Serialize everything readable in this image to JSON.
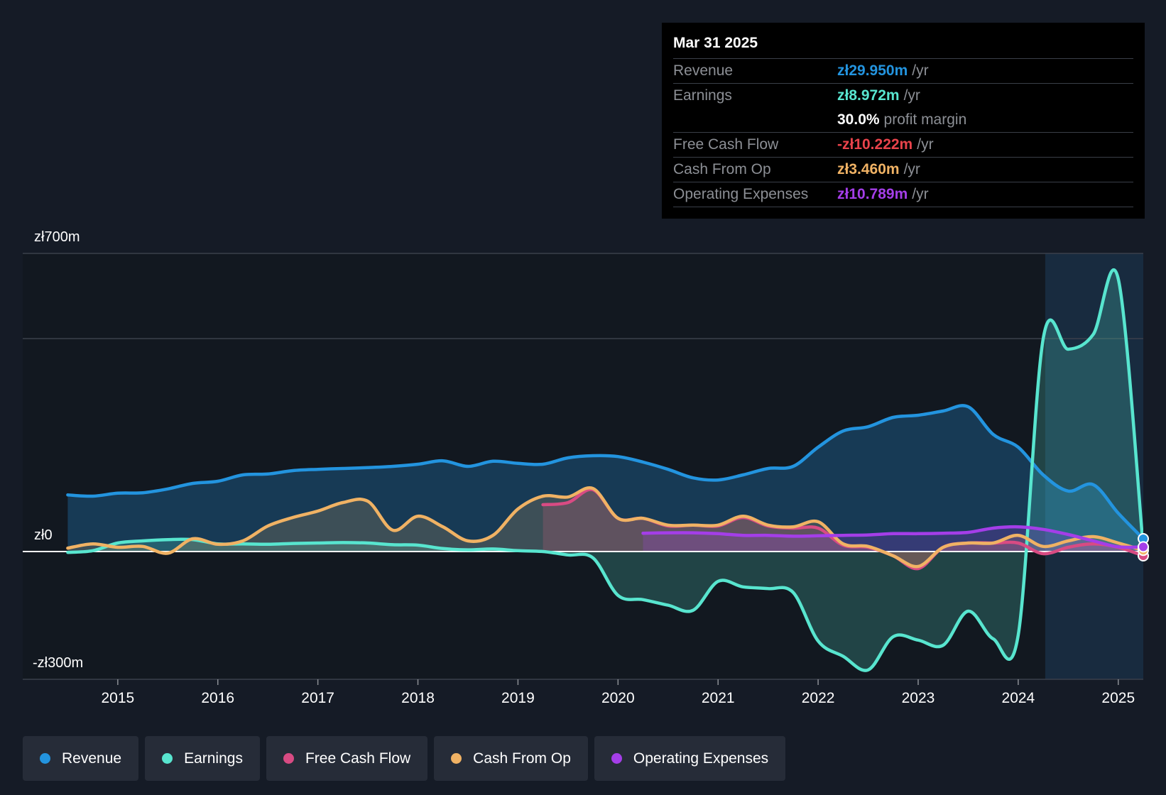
{
  "chart_data": {
    "type": "area",
    "y_axis": {
      "top_label": "zł700m",
      "zero_label": "zł0",
      "bottom_label": "-zł300m",
      "ylim": [
        -300,
        700
      ]
    },
    "x_ticks": [
      "2015",
      "2016",
      "2017",
      "2018",
      "2019",
      "2020",
      "2021",
      "2022",
      "2023",
      "2024",
      "2025"
    ],
    "xlim": [
      2014.05,
      2025.25
    ],
    "highlight_from": 2024.27,
    "series": [
      {
        "name": "Revenue",
        "color": "#2394df",
        "points": [
          [
            2014.5,
            133
          ],
          [
            2014.75,
            130
          ],
          [
            2015.0,
            137
          ],
          [
            2015.25,
            138
          ],
          [
            2015.5,
            147
          ],
          [
            2015.75,
            160
          ],
          [
            2016.0,
            165
          ],
          [
            2016.25,
            180
          ],
          [
            2016.5,
            182
          ],
          [
            2016.75,
            190
          ],
          [
            2017.0,
            193
          ],
          [
            2017.25,
            195
          ],
          [
            2017.5,
            197
          ],
          [
            2017.75,
            200
          ],
          [
            2018.0,
            205
          ],
          [
            2018.25,
            213
          ],
          [
            2018.5,
            200
          ],
          [
            2018.75,
            212
          ],
          [
            2019.0,
            207
          ],
          [
            2019.25,
            205
          ],
          [
            2019.5,
            220
          ],
          [
            2019.75,
            225
          ],
          [
            2020.0,
            223
          ],
          [
            2020.25,
            210
          ],
          [
            2020.5,
            193
          ],
          [
            2020.75,
            173
          ],
          [
            2021.0,
            168
          ],
          [
            2021.25,
            180
          ],
          [
            2021.5,
            195
          ],
          [
            2021.75,
            200
          ],
          [
            2022.0,
            245
          ],
          [
            2022.25,
            283
          ],
          [
            2022.5,
            293
          ],
          [
            2022.75,
            315
          ],
          [
            2023.0,
            320
          ],
          [
            2023.25,
            330
          ],
          [
            2023.5,
            340
          ],
          [
            2023.75,
            275
          ],
          [
            2024.0,
            245
          ],
          [
            2024.25,
            180
          ],
          [
            2024.5,
            142
          ],
          [
            2024.75,
            157
          ],
          [
            2025.0,
            90
          ],
          [
            2025.25,
            30
          ]
        ]
      },
      {
        "name": "Earnings",
        "color": "#58e5cf",
        "points": [
          [
            2014.5,
            -2
          ],
          [
            2014.75,
            2
          ],
          [
            2015.0,
            20
          ],
          [
            2015.25,
            25
          ],
          [
            2015.5,
            28
          ],
          [
            2015.75,
            28
          ],
          [
            2016.0,
            18
          ],
          [
            2016.25,
            18
          ],
          [
            2016.5,
            17
          ],
          [
            2016.75,
            19
          ],
          [
            2017.0,
            20
          ],
          [
            2017.25,
            21
          ],
          [
            2017.5,
            20
          ],
          [
            2017.75,
            16
          ],
          [
            2018.0,
            15
          ],
          [
            2018.25,
            7
          ],
          [
            2018.5,
            4
          ],
          [
            2018.75,
            6
          ],
          [
            2019.0,
            2
          ],
          [
            2019.25,
            0
          ],
          [
            2019.5,
            -8
          ],
          [
            2019.75,
            -15
          ],
          [
            2020.0,
            -103
          ],
          [
            2020.25,
            -113
          ],
          [
            2020.5,
            -126
          ],
          [
            2020.75,
            -138
          ],
          [
            2021.0,
            -70
          ],
          [
            2021.25,
            -83
          ],
          [
            2021.5,
            -87
          ],
          [
            2021.75,
            -96
          ],
          [
            2022.0,
            -210
          ],
          [
            2022.25,
            -246
          ],
          [
            2022.5,
            -278
          ],
          [
            2022.75,
            -200
          ],
          [
            2023.0,
            -208
          ],
          [
            2023.25,
            -220
          ],
          [
            2023.5,
            -140
          ],
          [
            2023.75,
            -205
          ],
          [
            2024.0,
            -196
          ],
          [
            2024.25,
            500
          ],
          [
            2024.5,
            475
          ],
          [
            2024.75,
            510
          ],
          [
            2025.0,
            640
          ],
          [
            2025.25,
            9
          ]
        ]
      },
      {
        "name": "Free Cash Flow",
        "color": "#d84b83",
        "points": [
          [
            2019.25,
            110
          ],
          [
            2019.5,
            115
          ],
          [
            2019.75,
            145
          ],
          [
            2020.0,
            78
          ],
          [
            2020.25,
            78
          ],
          [
            2020.5,
            60
          ],
          [
            2020.75,
            62
          ],
          [
            2021.0,
            60
          ],
          [
            2021.25,
            80
          ],
          [
            2021.5,
            60
          ],
          [
            2021.75,
            55
          ],
          [
            2022.0,
            55
          ],
          [
            2022.25,
            15
          ],
          [
            2022.5,
            10
          ],
          [
            2022.75,
            -10
          ],
          [
            2023.0,
            -40
          ],
          [
            2023.25,
            10
          ],
          [
            2023.5,
            20
          ],
          [
            2023.75,
            20
          ],
          [
            2024.0,
            20
          ],
          [
            2024.25,
            -5
          ],
          [
            2024.5,
            10
          ],
          [
            2024.75,
            18
          ],
          [
            2025.0,
            10
          ],
          [
            2025.25,
            -10
          ]
        ]
      },
      {
        "name": "Cash From Op",
        "color": "#f0b264",
        "points": [
          [
            2014.5,
            8
          ],
          [
            2014.75,
            18
          ],
          [
            2015.0,
            10
          ],
          [
            2015.25,
            12
          ],
          [
            2015.5,
            -4
          ],
          [
            2015.75,
            30
          ],
          [
            2016.0,
            17
          ],
          [
            2016.25,
            25
          ],
          [
            2016.5,
            60
          ],
          [
            2016.75,
            80
          ],
          [
            2017.0,
            95
          ],
          [
            2017.25,
            115
          ],
          [
            2017.5,
            118
          ],
          [
            2017.75,
            50
          ],
          [
            2018.0,
            83
          ],
          [
            2018.25,
            58
          ],
          [
            2018.5,
            25
          ],
          [
            2018.75,
            38
          ],
          [
            2019.0,
            100
          ],
          [
            2019.25,
            130
          ],
          [
            2019.5,
            128
          ],
          [
            2019.75,
            148
          ],
          [
            2020.0,
            78
          ],
          [
            2020.25,
            78
          ],
          [
            2020.5,
            62
          ],
          [
            2020.75,
            62
          ],
          [
            2021.0,
            62
          ],
          [
            2021.25,
            83
          ],
          [
            2021.5,
            62
          ],
          [
            2021.75,
            58
          ],
          [
            2022.0,
            70
          ],
          [
            2022.25,
            18
          ],
          [
            2022.5,
            12
          ],
          [
            2022.75,
            -10
          ],
          [
            2023.0,
            -35
          ],
          [
            2023.25,
            10
          ],
          [
            2023.5,
            20
          ],
          [
            2023.75,
            20
          ],
          [
            2024.0,
            38
          ],
          [
            2024.25,
            12
          ],
          [
            2024.5,
            25
          ],
          [
            2024.75,
            35
          ],
          [
            2025.0,
            20
          ],
          [
            2025.25,
            3
          ]
        ]
      },
      {
        "name": "Operating Expenses",
        "color": "#a43ee8",
        "points": [
          [
            2020.25,
            43
          ],
          [
            2020.5,
            44
          ],
          [
            2020.75,
            44
          ],
          [
            2021.0,
            42
          ],
          [
            2021.25,
            38
          ],
          [
            2021.5,
            38
          ],
          [
            2021.75,
            36
          ],
          [
            2022.0,
            37
          ],
          [
            2022.25,
            38
          ],
          [
            2022.5,
            39
          ],
          [
            2022.75,
            42
          ],
          [
            2023.0,
            42
          ],
          [
            2023.25,
            43
          ],
          [
            2023.5,
            45
          ],
          [
            2023.75,
            55
          ],
          [
            2024.0,
            58
          ],
          [
            2024.25,
            52
          ],
          [
            2024.5,
            40
          ],
          [
            2024.75,
            25
          ],
          [
            2025.0,
            11
          ],
          [
            2025.25,
            11
          ]
        ]
      }
    ]
  },
  "tooltip": {
    "date": "Mar 31 2025",
    "rows": [
      {
        "label": "Revenue",
        "value": "zł29.950m",
        "unit": "/yr",
        "color": "#2394df"
      },
      {
        "label": "Earnings",
        "value": "zł8.972m",
        "unit": "/yr",
        "color": "#58e5cf"
      },
      {
        "label": "",
        "value": "30.0%",
        "unit": "profit margin",
        "color": "#ffffff"
      },
      {
        "label": "Free Cash Flow",
        "value": "-zł10.222m",
        "unit": "/yr",
        "color": "#e8434b"
      },
      {
        "label": "Cash From Op",
        "value": "zł3.460m",
        "unit": "/yr",
        "color": "#f0b264"
      },
      {
        "label": "Operating Expenses",
        "value": "zł10.789m",
        "unit": "/yr",
        "color": "#a43ee8"
      }
    ]
  },
  "legend": [
    {
      "label": "Revenue",
      "color": "#2394df"
    },
    {
      "label": "Earnings",
      "color": "#58e5cf"
    },
    {
      "label": "Free Cash Flow",
      "color": "#d84b83"
    },
    {
      "label": "Cash From Op",
      "color": "#f0b264"
    },
    {
      "label": "Operating Expenses",
      "color": "#a43ee8"
    }
  ]
}
